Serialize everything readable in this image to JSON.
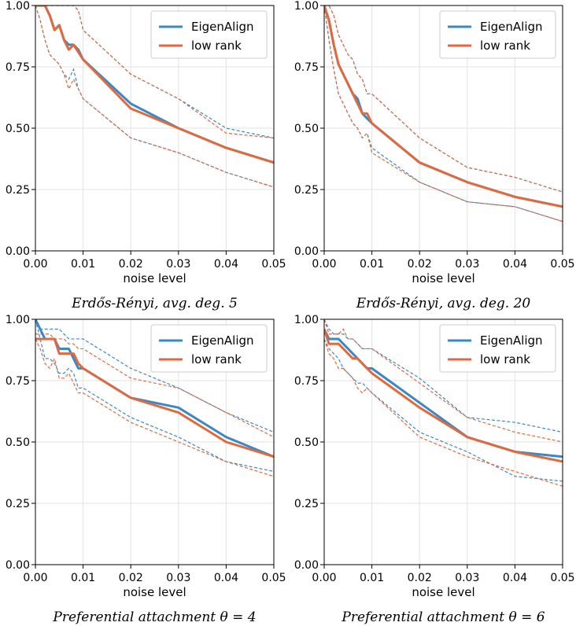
{
  "colors": {
    "blue": "#3a88c7",
    "orange": "#e06a3f",
    "lowrank_band_lower": "#c47a55"
  },
  "chart_data": [
    {
      "type": "line",
      "title": "",
      "caption": "Erdős-Rényi, avg. deg. 5",
      "xlabel": "noise level",
      "ylabel": "",
      "xlim": [
        0,
        0.05
      ],
      "ylim": [
        0,
        1
      ],
      "xticks": [
        "0.00",
        "0.01",
        "0.02",
        "0.03",
        "0.04",
        "0.05"
      ],
      "yticks": [
        "0.00",
        "0.25",
        "0.50",
        "0.75",
        "1.00"
      ],
      "grid": true,
      "legend": {
        "position": "top-right",
        "entries": [
          "EigenAlign",
          "low rank"
        ]
      },
      "x": [
        0,
        0.001,
        0.002,
        0.003,
        0.004,
        0.005,
        0.006,
        0.007,
        0.008,
        0.009,
        0.01,
        0.02,
        0.03,
        0.04,
        0.05
      ],
      "series": [
        {
          "name": "EigenAlign",
          "mean": [
            1.0,
            1.0,
            1.0,
            0.96,
            0.9,
            0.92,
            0.86,
            0.84,
            0.84,
            0.82,
            0.78,
            0.6,
            0.5,
            0.42,
            0.36
          ],
          "upper": [
            1.0,
            1.0,
            1.0,
            1.0,
            1.0,
            1.0,
            1.0,
            1.0,
            1.0,
            0.98,
            0.9,
            0.72,
            0.62,
            0.5,
            0.46
          ],
          "lower": [
            1.0,
            0.94,
            0.86,
            0.8,
            0.78,
            0.76,
            0.72,
            0.7,
            0.74,
            0.66,
            0.62,
            0.46,
            0.4,
            0.32,
            0.26
          ]
        },
        {
          "name": "low rank",
          "mean": [
            1.0,
            1.0,
            1.0,
            0.96,
            0.9,
            0.92,
            0.86,
            0.82,
            0.84,
            0.81,
            0.78,
            0.58,
            0.5,
            0.42,
            0.36
          ],
          "upper": [
            1.0,
            1.0,
            1.0,
            1.0,
            1.0,
            1.0,
            1.0,
            1.0,
            1.0,
            0.98,
            0.9,
            0.72,
            0.62,
            0.48,
            0.46
          ],
          "lower": [
            1.0,
            0.94,
            0.86,
            0.8,
            0.78,
            0.76,
            0.72,
            0.66,
            0.7,
            0.66,
            0.62,
            0.46,
            0.4,
            0.32,
            0.26
          ]
        }
      ]
    },
    {
      "type": "line",
      "title": "",
      "caption": "Erdős-Rényi, avg. deg. 20",
      "xlabel": "noise level",
      "ylabel": "",
      "xlim": [
        0,
        0.05
      ],
      "ylim": [
        0,
        1
      ],
      "xticks": [
        "0.00",
        "0.01",
        "0.02",
        "0.03",
        "0.04",
        "0.05"
      ],
      "yticks": [
        "0.00",
        "0.25",
        "0.50",
        "0.75",
        "1.00"
      ],
      "grid": true,
      "legend": {
        "position": "top-right",
        "entries": [
          "EigenAlign",
          "low rank"
        ]
      },
      "x": [
        0,
        0.001,
        0.002,
        0.003,
        0.004,
        0.005,
        0.006,
        0.007,
        0.008,
        0.009,
        0.01,
        0.02,
        0.03,
        0.04,
        0.05
      ],
      "series": [
        {
          "name": "EigenAlign",
          "mean": [
            1.0,
            0.94,
            0.84,
            0.76,
            0.72,
            0.68,
            0.64,
            0.62,
            0.56,
            0.54,
            0.52,
            0.36,
            0.28,
            0.22,
            0.18
          ],
          "upper": [
            1.0,
            1.0,
            0.96,
            0.88,
            0.84,
            0.8,
            0.78,
            0.72,
            0.7,
            0.64,
            0.64,
            0.46,
            0.34,
            0.3,
            0.24
          ],
          "lower": [
            1.0,
            0.86,
            0.74,
            0.64,
            0.6,
            0.56,
            0.52,
            0.5,
            0.46,
            0.48,
            0.42,
            0.28,
            0.2,
            0.18,
            0.12
          ]
        },
        {
          "name": "low rank",
          "mean": [
            1.0,
            0.94,
            0.84,
            0.76,
            0.72,
            0.68,
            0.64,
            0.6,
            0.56,
            0.56,
            0.52,
            0.36,
            0.28,
            0.22,
            0.18
          ],
          "upper": [
            1.0,
            1.0,
            0.96,
            0.88,
            0.84,
            0.8,
            0.78,
            0.72,
            0.7,
            0.64,
            0.64,
            0.46,
            0.34,
            0.3,
            0.24
          ],
          "lower": [
            1.0,
            0.86,
            0.74,
            0.64,
            0.6,
            0.56,
            0.52,
            0.5,
            0.46,
            0.48,
            0.4,
            0.28,
            0.2,
            0.18,
            0.12
          ]
        }
      ]
    },
    {
      "type": "line",
      "title": "",
      "caption": "Preferential attachment θ = 4",
      "xlabel": "noise level",
      "ylabel": "",
      "xlim": [
        0,
        0.05
      ],
      "ylim": [
        0,
        1
      ],
      "xticks": [
        "0.00",
        "0.01",
        "0.02",
        "0.03",
        "0.04",
        "0.05"
      ],
      "yticks": [
        "0.00",
        "0.25",
        "0.50",
        "0.75",
        "1.00"
      ],
      "grid": true,
      "legend": {
        "position": "top-right",
        "entries": [
          "EigenAlign",
          "low rank"
        ]
      },
      "x": [
        0,
        0.001,
        0.002,
        0.003,
        0.004,
        0.005,
        0.006,
        0.007,
        0.008,
        0.009,
        0.01,
        0.02,
        0.03,
        0.04,
        0.05
      ],
      "series": [
        {
          "name": "EigenAlign",
          "mean": [
            1.0,
            0.96,
            0.92,
            0.92,
            0.92,
            0.88,
            0.88,
            0.88,
            0.84,
            0.8,
            0.8,
            0.68,
            0.64,
            0.52,
            0.44
          ],
          "upper": [
            1.0,
            0.96,
            0.96,
            0.96,
            0.96,
            0.96,
            0.94,
            0.92,
            0.92,
            0.92,
            0.92,
            0.8,
            0.72,
            0.62,
            0.54
          ],
          "lower": [
            1.0,
            0.92,
            0.84,
            0.84,
            0.82,
            0.78,
            0.78,
            0.8,
            0.78,
            0.72,
            0.72,
            0.6,
            0.52,
            0.42,
            0.38
          ]
        },
        {
          "name": "low rank",
          "mean": [
            0.92,
            0.92,
            0.92,
            0.92,
            0.92,
            0.86,
            0.86,
            0.86,
            0.86,
            0.82,
            0.8,
            0.68,
            0.62,
            0.5,
            0.44
          ],
          "upper": [
            0.94,
            0.94,
            0.94,
            0.94,
            0.92,
            0.92,
            0.92,
            0.9,
            0.9,
            0.88,
            0.88,
            0.76,
            0.72,
            0.62,
            0.52
          ],
          "lower": [
            0.92,
            0.88,
            0.82,
            0.8,
            0.84,
            0.76,
            0.76,
            0.78,
            0.74,
            0.7,
            0.7,
            0.58,
            0.5,
            0.42,
            0.36
          ]
        }
      ]
    },
    {
      "type": "line",
      "title": "",
      "caption": "Preferential attachment θ = 6",
      "xlabel": "noise level",
      "ylabel": "",
      "xlim": [
        0,
        0.05
      ],
      "ylim": [
        0,
        1
      ],
      "xticks": [
        "0.00",
        "0.01",
        "0.02",
        "0.03",
        "0.04",
        "0.05"
      ],
      "yticks": [
        "0.00",
        "0.25",
        "0.50",
        "0.75",
        "1.00"
      ],
      "grid": true,
      "legend": {
        "position": "top-right",
        "entries": [
          "EigenAlign",
          "low rank"
        ]
      },
      "x": [
        0,
        0.001,
        0.002,
        0.003,
        0.004,
        0.005,
        0.006,
        0.007,
        0.008,
        0.009,
        0.01,
        0.02,
        0.03,
        0.04,
        0.05
      ],
      "series": [
        {
          "name": "EigenAlign",
          "mean": [
            0.96,
            0.92,
            0.92,
            0.92,
            0.9,
            0.88,
            0.86,
            0.84,
            0.82,
            0.8,
            0.8,
            0.66,
            0.52,
            0.46,
            0.44
          ],
          "upper": [
            1.0,
            0.96,
            0.94,
            0.94,
            0.94,
            0.92,
            0.92,
            0.9,
            0.88,
            0.88,
            0.88,
            0.76,
            0.6,
            0.58,
            0.54
          ],
          "lower": [
            0.92,
            0.88,
            0.86,
            0.84,
            0.8,
            0.78,
            0.76,
            0.74,
            0.74,
            0.72,
            0.7,
            0.54,
            0.46,
            0.36,
            0.34
          ]
        },
        {
          "name": "low rank",
          "mean": [
            0.96,
            0.9,
            0.9,
            0.9,
            0.88,
            0.86,
            0.84,
            0.84,
            0.82,
            0.8,
            0.78,
            0.64,
            0.52,
            0.46,
            0.42
          ],
          "upper": [
            1.0,
            0.94,
            0.94,
            0.94,
            0.96,
            0.92,
            0.92,
            0.9,
            0.88,
            0.88,
            0.88,
            0.74,
            0.6,
            0.54,
            0.5
          ],
          "lower": [
            0.92,
            0.86,
            0.84,
            0.8,
            0.8,
            0.78,
            0.76,
            0.72,
            0.7,
            0.72,
            0.7,
            0.52,
            0.44,
            0.38,
            0.32
          ]
        }
      ]
    }
  ]
}
